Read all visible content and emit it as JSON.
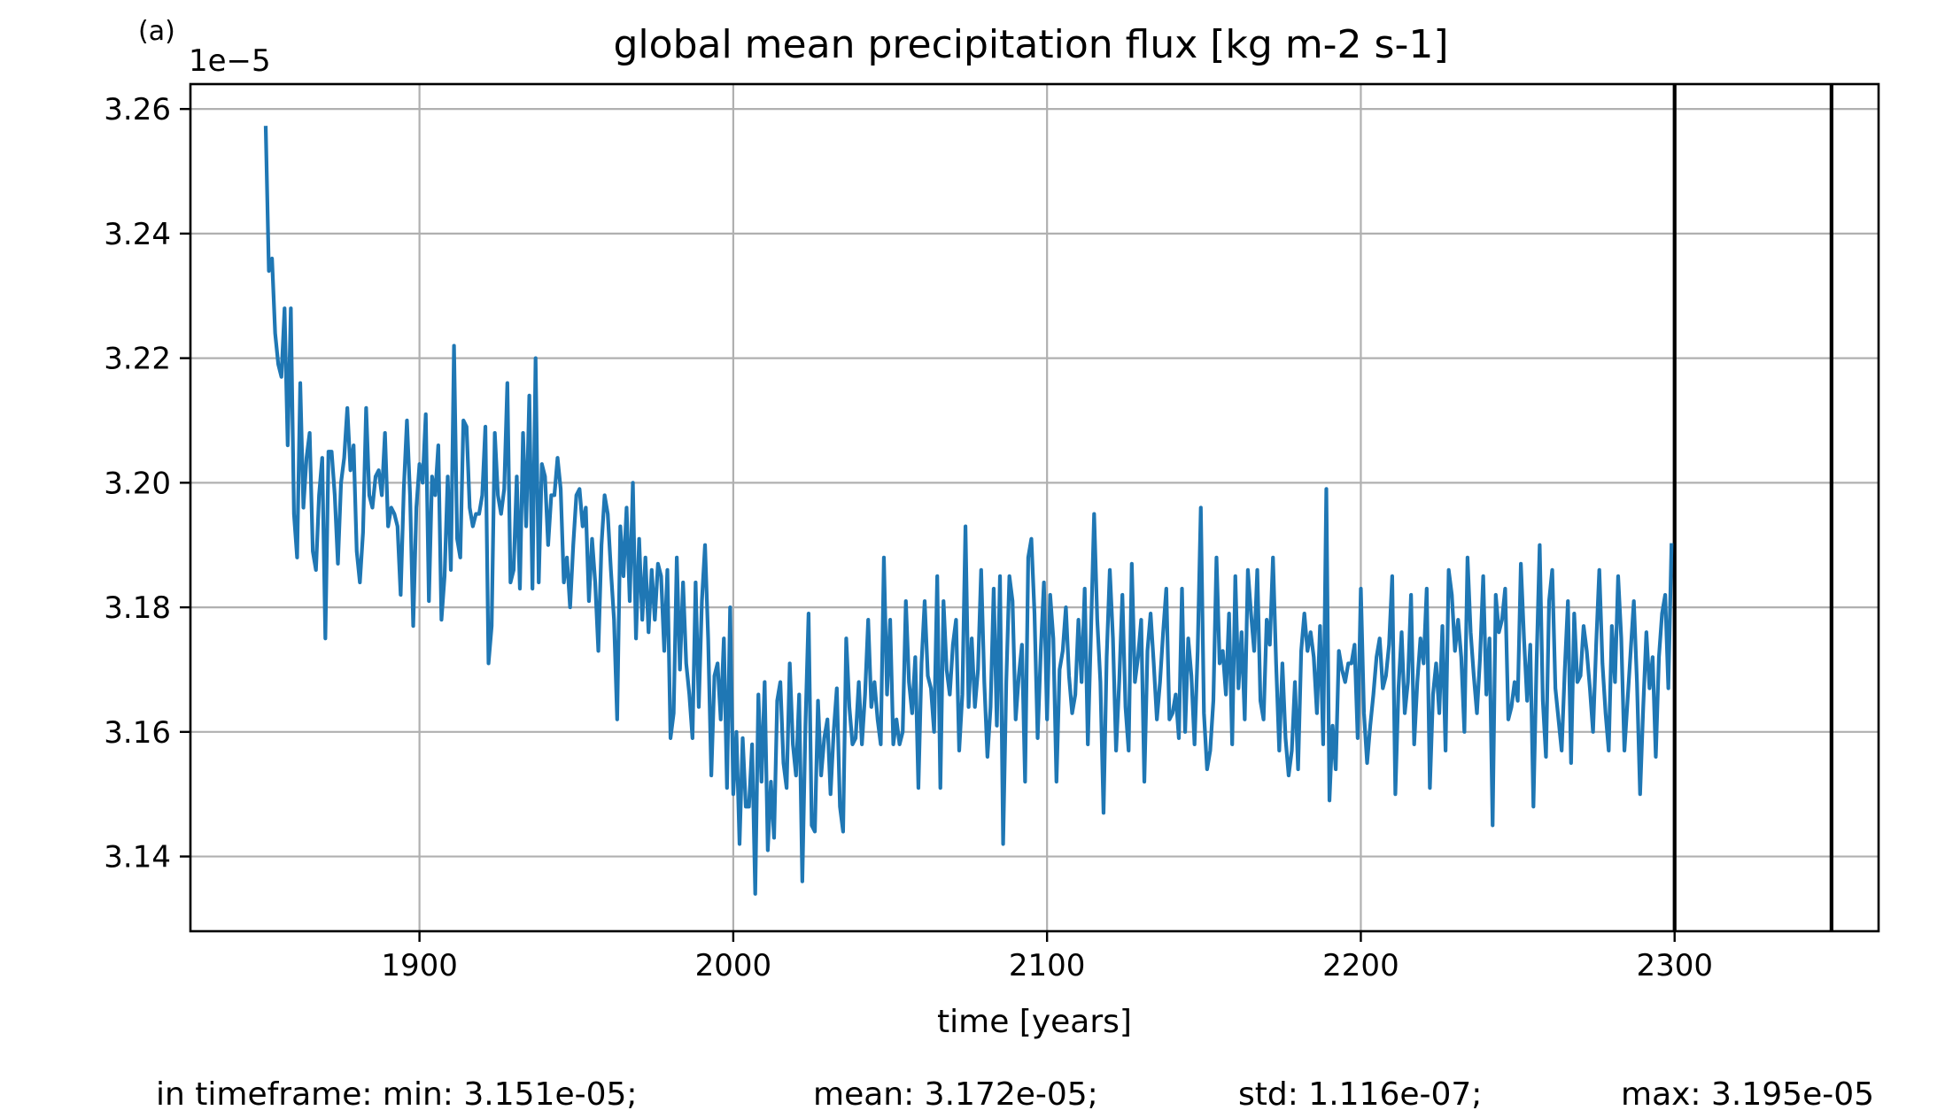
{
  "panel_label": "(a)",
  "stats": {
    "min": "in timeframe: min: 3.151e-05;",
    "mean": "mean: 3.172e-05;",
    "std": "std: 1.116e-07;",
    "max": "max: 3.195e-05"
  },
  "chart_data": {
    "type": "line",
    "title": "global mean precipitation flux [kg m-2 s-1]",
    "xlabel": "time [years]",
    "ylabel": "",
    "y_offset_label": "1e−5",
    "y_multiplier": 1e-05,
    "xlim": [
      1827,
      2365
    ],
    "ylim": [
      3.128,
      3.264
    ],
    "grid": true,
    "x_ticks": [
      1900,
      2000,
      2100,
      2200,
      2300
    ],
    "x_tick_labels": [
      "1900",
      "2000",
      "2100",
      "2200",
      "2300"
    ],
    "y_ticks": [
      3.14,
      3.16,
      3.18,
      3.2,
      3.22,
      3.24,
      3.26
    ],
    "y_tick_labels": [
      "3.14",
      "3.16",
      "3.18",
      "3.20",
      "3.22",
      "3.24",
      "3.26"
    ],
    "vertical_lines": [
      2300,
      2350
    ],
    "colors": {
      "series": "#1f77b4",
      "grid": "#b0b0b0",
      "vlines": "#000000"
    },
    "series": [
      {
        "name": "",
        "x_start": 1851,
        "x_step": 1,
        "values": [
          3.257,
          3.234,
          3.236,
          3.224,
          3.219,
          3.217,
          3.228,
          3.206,
          3.228,
          3.195,
          3.188,
          3.216,
          3.196,
          3.204,
          3.208,
          3.189,
          3.186,
          3.198,
          3.204,
          3.175,
          3.205,
          3.205,
          3.198,
          3.187,
          3.2,
          3.204,
          3.212,
          3.202,
          3.206,
          3.189,
          3.184,
          3.192,
          3.212,
          3.198,
          3.196,
          3.201,
          3.202,
          3.198,
          3.208,
          3.193,
          3.196,
          3.195,
          3.193,
          3.182,
          3.199,
          3.21,
          3.198,
          3.177,
          3.196,
          3.203,
          3.2,
          3.211,
          3.181,
          3.201,
          3.198,
          3.206,
          3.178,
          3.185,
          3.201,
          3.186,
          3.222,
          3.191,
          3.188,
          3.21,
          3.209,
          3.196,
          3.193,
          3.195,
          3.195,
          3.198,
          3.209,
          3.171,
          3.177,
          3.208,
          3.198,
          3.195,
          3.199,
          3.216,
          3.184,
          3.186,
          3.201,
          3.183,
          3.208,
          3.193,
          3.214,
          3.183,
          3.22,
          3.184,
          3.203,
          3.201,
          3.19,
          3.198,
          3.198,
          3.204,
          3.199,
          3.184,
          3.188,
          3.18,
          3.19,
          3.198,
          3.199,
          3.193,
          3.196,
          3.181,
          3.191,
          3.184,
          3.173,
          3.19,
          3.198,
          3.195,
          3.186,
          3.178,
          3.162,
          3.193,
          3.185,
          3.196,
          3.181,
          3.2,
          3.175,
          3.191,
          3.178,
          3.188,
          3.176,
          3.186,
          3.178,
          3.187,
          3.185,
          3.173,
          3.186,
          3.159,
          3.163,
          3.188,
          3.17,
          3.184,
          3.171,
          3.166,
          3.159,
          3.184,
          3.164,
          3.181,
          3.19,
          3.175,
          3.153,
          3.169,
          3.171,
          3.162,
          3.175,
          3.151,
          3.18,
          3.15,
          3.16,
          3.142,
          3.159,
          3.148,
          3.148,
          3.158,
          3.134,
          3.166,
          3.152,
          3.168,
          3.141,
          3.152,
          3.143,
          3.165,
          3.168,
          3.155,
          3.151,
          3.171,
          3.158,
          3.153,
          3.166,
          3.136,
          3.161,
          3.179,
          3.145,
          3.144,
          3.165,
          3.153,
          3.159,
          3.162,
          3.15,
          3.16,
          3.167,
          3.148,
          3.144,
          3.175,
          3.164,
          3.158,
          3.159,
          3.168,
          3.158,
          3.166,
          3.178,
          3.164,
          3.168,
          3.162,
          3.158,
          3.188,
          3.166,
          3.178,
          3.158,
          3.162,
          3.158,
          3.16,
          3.181,
          3.168,
          3.163,
          3.172,
          3.151,
          3.171,
          3.181,
          3.169,
          3.167,
          3.16,
          3.185,
          3.151,
          3.181,
          3.17,
          3.166,
          3.174,
          3.178,
          3.157,
          3.166,
          3.193,
          3.164,
          3.175,
          3.164,
          3.17,
          3.186,
          3.168,
          3.156,
          3.164,
          3.183,
          3.161,
          3.185,
          3.142,
          3.168,
          3.185,
          3.181,
          3.162,
          3.169,
          3.174,
          3.152,
          3.188,
          3.191,
          3.179,
          3.159,
          3.173,
          3.184,
          3.162,
          3.182,
          3.175,
          3.152,
          3.17,
          3.173,
          3.18,
          3.169,
          3.163,
          3.166,
          3.178,
          3.168,
          3.183,
          3.158,
          3.176,
          3.195,
          3.178,
          3.168,
          3.147,
          3.172,
          3.186,
          3.175,
          3.157,
          3.168,
          3.182,
          3.164,
          3.157,
          3.187,
          3.168,
          3.172,
          3.178,
          3.152,
          3.173,
          3.179,
          3.171,
          3.162,
          3.168,
          3.176,
          3.183,
          3.162,
          3.163,
          3.166,
          3.159,
          3.183,
          3.16,
          3.175,
          3.169,
          3.158,
          3.173,
          3.196,
          3.163,
          3.154,
          3.157,
          3.165,
          3.188,
          3.171,
          3.173,
          3.166,
          3.179,
          3.158,
          3.185,
          3.167,
          3.176,
          3.162,
          3.186,
          3.179,
          3.173,
          3.186,
          3.165,
          3.162,
          3.178,
          3.174,
          3.188,
          3.171,
          3.157,
          3.171,
          3.159,
          3.153,
          3.157,
          3.168,
          3.154,
          3.173,
          3.179,
          3.173,
          3.176,
          3.172,
          3.163,
          3.177,
          3.158,
          3.199,
          3.149,
          3.161,
          3.154,
          3.173,
          3.17,
          3.168,
          3.171,
          3.171,
          3.174,
          3.159,
          3.183,
          3.163,
          3.155,
          3.161,
          3.166,
          3.172,
          3.175,
          3.167,
          3.169,
          3.174,
          3.185,
          3.15,
          3.167,
          3.176,
          3.163,
          3.168,
          3.182,
          3.158,
          3.168,
          3.175,
          3.171,
          3.183,
          3.151,
          3.166,
          3.171,
          3.163,
          3.177,
          3.157,
          3.186,
          3.182,
          3.173,
          3.178,
          3.172,
          3.16,
          3.188,
          3.176,
          3.169,
          3.163,
          3.172,
          3.185,
          3.166,
          3.175,
          3.145,
          3.182,
          3.176,
          3.178,
          3.183,
          3.162,
          3.164,
          3.168,
          3.165,
          3.187,
          3.175,
          3.165,
          3.174,
          3.148,
          3.171,
          3.19,
          3.165,
          3.156,
          3.181,
          3.186,
          3.167,
          3.162,
          3.157,
          3.17,
          3.181,
          3.155,
          3.179,
          3.168,
          3.169,
          3.177,
          3.173,
          3.167,
          3.16,
          3.174,
          3.186,
          3.171,
          3.163,
          3.157,
          3.177,
          3.168,
          3.185,
          3.175,
          3.157,
          3.165,
          3.173,
          3.181,
          3.168,
          3.15,
          3.164,
          3.176,
          3.167,
          3.172,
          3.156,
          3.172,
          3.179,
          3.182,
          3.167,
          3.19
        ]
      }
    ]
  }
}
